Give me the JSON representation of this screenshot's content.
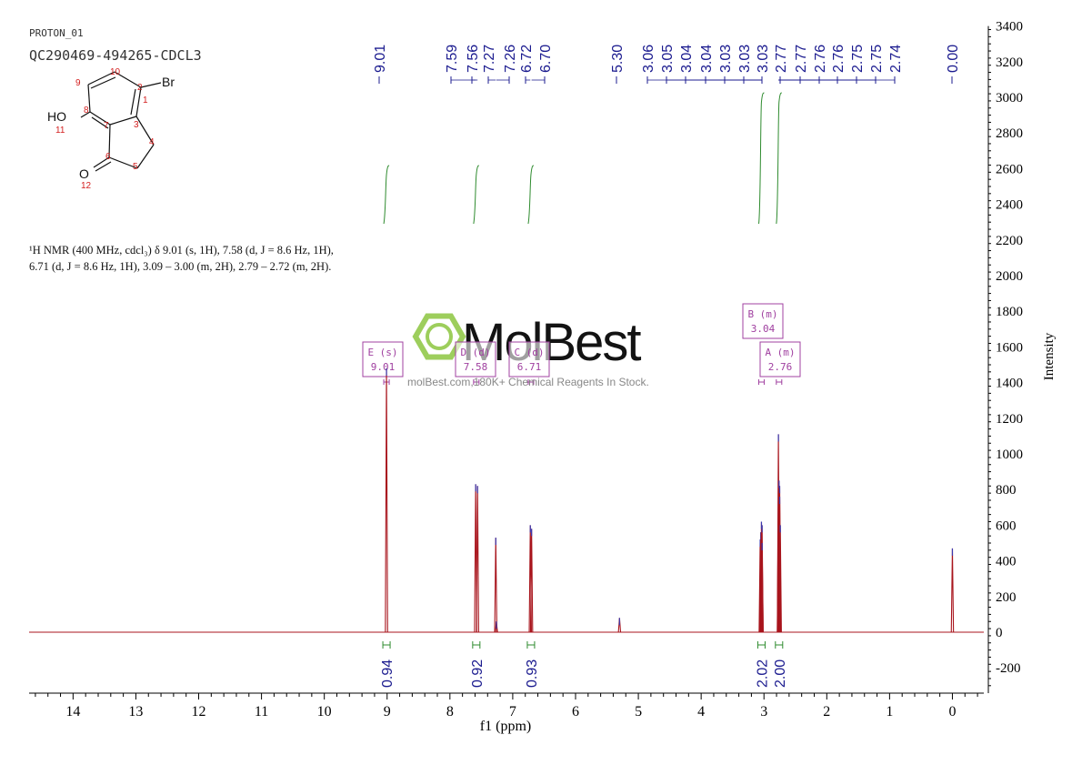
{
  "header": {
    "experiment": "PROTON_01",
    "sample": "QC290469-494265-CDCL3"
  },
  "molecule": {
    "atoms": [
      {
        "label": "10",
        "kind": "num"
      },
      {
        "label": "9",
        "kind": "num"
      },
      {
        "label": "2",
        "kind": "num"
      },
      {
        "label": "Br",
        "kind": "sym"
      },
      {
        "label": "1",
        "kind": "num"
      },
      {
        "label": "HO",
        "kind": "sym"
      },
      {
        "label": "8",
        "kind": "num"
      },
      {
        "label": "11",
        "kind": "num"
      },
      {
        "label": "7",
        "kind": "num"
      },
      {
        "label": "3",
        "kind": "num"
      },
      {
        "label": "4",
        "kind": "num"
      },
      {
        "label": "O",
        "kind": "sym"
      },
      {
        "label": "6",
        "kind": "num"
      },
      {
        "label": "5",
        "kind": "num"
      },
      {
        "label": "12",
        "kind": "num"
      }
    ]
  },
  "nmr_text": {
    "line1": "¹H NMR (400 MHz, cdcl₃) δ 9.01 (s, 1H), 7.58 (d, J = 8.6 Hz, 1H),",
    "line2": "6.71 (d, J = 8.6 Hz, 1H), 3.09 – 3.00 (m, 2H), 2.79 – 2.72 (m, 2H)."
  },
  "watermark": {
    "brand": "MolBest",
    "subtitle": "molBest.com,180K+ Chemical Reagents In Stock."
  },
  "colors": {
    "spectrum": "#a8141c",
    "peak_labels": "#1b1b8f",
    "integral": "#2e8b2e",
    "multiplet_box": "#a040a0",
    "watermark": "#8cc63f"
  },
  "chart_data": {
    "type": "line",
    "xlabel": "f1 (ppm)",
    "ylabel": "Intensity",
    "xlim": [
      14.7,
      -0.5
    ],
    "ylim": [
      -300,
      3400
    ],
    "x_ticks": [
      "14",
      "13",
      "12",
      "11",
      "10",
      "9",
      "8",
      "7",
      "6",
      "5",
      "4",
      "3",
      "2",
      "1",
      "0"
    ],
    "y_ticks": [
      "-200",
      "0",
      "200",
      "400",
      "600",
      "800",
      "1000",
      "1200",
      "1400",
      "1600",
      "1800",
      "2000",
      "2200",
      "2400",
      "2600",
      "2800",
      "3000",
      "3200",
      "3400"
    ],
    "peaks": [
      {
        "ppm": 9.01,
        "height": 1480
      },
      {
        "ppm": 7.59,
        "height": 830
      },
      {
        "ppm": 7.56,
        "height": 820
      },
      {
        "ppm": 7.27,
        "height": 530
      },
      {
        "ppm": 7.26,
        "height": 60
      },
      {
        "ppm": 6.72,
        "height": 600
      },
      {
        "ppm": 6.7,
        "height": 580
      },
      {
        "ppm": 5.3,
        "height": 80
      },
      {
        "ppm": 3.06,
        "height": 520
      },
      {
        "ppm": 3.05,
        "height": 560
      },
      {
        "ppm": 3.04,
        "height": 620
      },
      {
        "ppm": 3.03,
        "height": 600
      },
      {
        "ppm": 3.03,
        "height": 500
      },
      {
        "ppm": 2.77,
        "height": 780
      },
      {
        "ppm": 2.77,
        "height": 1110
      },
      {
        "ppm": 2.76,
        "height": 850
      },
      {
        "ppm": 2.75,
        "height": 820
      },
      {
        "ppm": 2.75,
        "height": 760
      },
      {
        "ppm": 2.74,
        "height": 600
      },
      {
        "ppm": 0.0,
        "height": 470
      }
    ],
    "peak_labels": [
      {
        "text": "9.01",
        "ppm": 9.01
      },
      {
        "text": "7.59",
        "ppm": 7.59
      },
      {
        "text": "7.56",
        "ppm": 7.56
      },
      {
        "text": "7.27",
        "ppm": 7.27
      },
      {
        "text": "7.26",
        "ppm": 7.26
      },
      {
        "text": "6.72",
        "ppm": 6.72
      },
      {
        "text": "6.70",
        "ppm": 6.7
      },
      {
        "text": "5.30",
        "ppm": 5.3
      },
      {
        "text": "3.06",
        "ppm": 3.06
      },
      {
        "text": "3.05",
        "ppm": 3.05
      },
      {
        "text": "3.04",
        "ppm": 3.04
      },
      {
        "text": "3.04",
        "ppm": 3.04
      },
      {
        "text": "3.03",
        "ppm": 3.03
      },
      {
        "text": "3.03",
        "ppm": 3.03
      },
      {
        "text": "3.03",
        "ppm": 3.03
      },
      {
        "text": "2.77",
        "ppm": 2.77
      },
      {
        "text": "2.77",
        "ppm": 2.77
      },
      {
        "text": "2.76",
        "ppm": 2.76
      },
      {
        "text": "2.76",
        "ppm": 2.76
      },
      {
        "text": "2.75",
        "ppm": 2.75
      },
      {
        "text": "2.75",
        "ppm": 2.75
      },
      {
        "text": "2.74",
        "ppm": 2.74
      },
      {
        "text": "0.00",
        "ppm": 0.0
      }
    ],
    "integrals": [
      {
        "ppm": 9.01,
        "value": "0.94"
      },
      {
        "ppm": 7.58,
        "value": "0.92"
      },
      {
        "ppm": 6.71,
        "value": "0.93"
      },
      {
        "ppm": 3.04,
        "value": "2.02"
      },
      {
        "ppm": 2.76,
        "value": "2.00"
      }
    ],
    "multiplets": [
      {
        "label": "E (s)",
        "shift": "9.01",
        "ppm": 9.01
      },
      {
        "label": "D (d)",
        "shift": "7.58",
        "ppm": 7.58
      },
      {
        "label": "C (d)",
        "shift": "6.71",
        "ppm": 6.71
      },
      {
        "label": "B (m)",
        "shift": "3.04",
        "ppm": 3.04
      },
      {
        "label": "A (m)",
        "shift": "2.76",
        "ppm": 2.76
      }
    ]
  }
}
